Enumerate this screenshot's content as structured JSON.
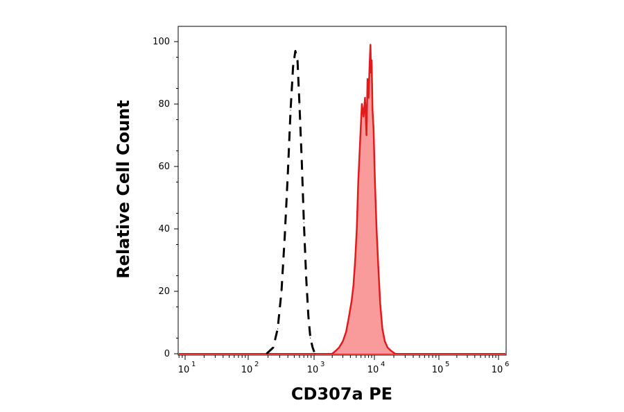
{
  "chart_data": {
    "type": "area",
    "xlabel": "CD307a PE",
    "ylabel": "Relative Cell Count",
    "xscale": "log",
    "xlim": [
      5,
      1000000
    ],
    "ylim": [
      0,
      105
    ],
    "grid": false,
    "x_ticks": [
      {
        "base": "10",
        "exp": "1",
        "value": 10
      },
      {
        "base": "10",
        "exp": "2",
        "value": 100
      },
      {
        "base": "10",
        "exp": "3",
        "value": 1000
      },
      {
        "base": "10",
        "exp": "4",
        "value": 10000
      },
      {
        "base": "10",
        "exp": "5",
        "value": 100000
      },
      {
        "base": "10",
        "exp": "6",
        "value": 1000000
      }
    ],
    "y_ticks": [
      "0",
      "20",
      "40",
      "60",
      "80",
      "100"
    ],
    "series": [
      {
        "style": "dashed-line",
        "color": "#000000",
        "x": [
          190,
          240,
          280,
          320,
          360,
          400,
          440,
          480,
          520,
          560,
          600,
          650,
          700,
          760,
          820,
          880,
          950,
          1030
        ],
        "y": [
          0,
          2,
          8,
          20,
          38,
          58,
          78,
          92,
          97,
          94,
          80,
          62,
          42,
          24,
          12,
          5,
          2,
          0
        ]
      },
      {
        "style": "filled-area",
        "color": "#e31a1c",
        "fill": "#f99b9b",
        "x": [
          2000,
          2300,
          2600,
          3000,
          3400,
          3800,
          4200,
          4500,
          4800,
          5100,
          5400,
          5800,
          6200,
          6600,
          7000,
          7400,
          7700,
          8000,
          8300,
          8600,
          8800,
          9000,
          9300,
          9700,
          10200,
          10800,
          11500,
          12300,
          13300,
          14500,
          16000,
          18000,
          21000
        ],
        "y": [
          0,
          1,
          2,
          4,
          7,
          12,
          17,
          22,
          30,
          40,
          55,
          68,
          80,
          76,
          82,
          70,
          88,
          82,
          92,
          99,
          90,
          94,
          78,
          72,
          55,
          40,
          28,
          16,
          8,
          4,
          2,
          1,
          0
        ]
      }
    ]
  }
}
